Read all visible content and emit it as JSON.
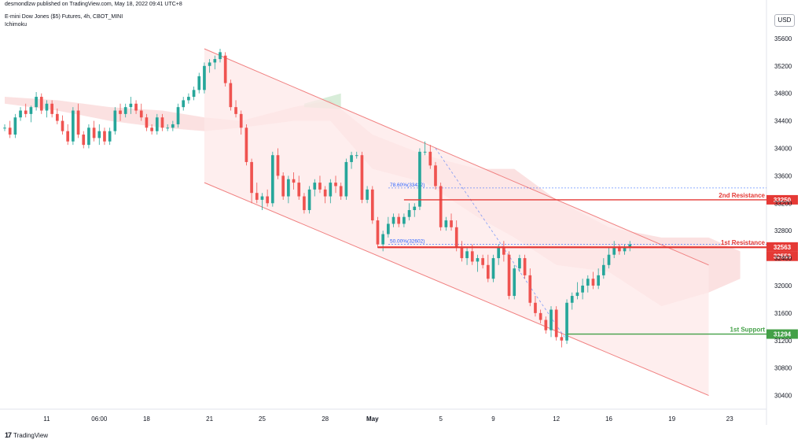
{
  "header": {
    "published": "desmondlzw published on TradingView.com, May 18, 2022 09:41 UTC+8",
    "instrument": "E-mini Dow Jones ($5) Futures, 4h, CBOT_MINI",
    "indicator": "Ichimoku"
  },
  "currency_label": "USD",
  "footer": {
    "logo": "17",
    "brand": "TradingView"
  },
  "colors": {
    "bull": "#26a69a",
    "bear": "#ef5350",
    "channel_line": "#f08080",
    "channel_fill": "#fde8e8",
    "cloud_red": "#f8c8c8",
    "cloud_green": "#c8e6c9",
    "resistance": "#e53935",
    "support": "#43a047",
    "fib": "#2962ff"
  },
  "chart_data": {
    "type": "candlestick",
    "title": "E-mini Dow Jones ($5) Futures, 4h, CBOT_MINI",
    "ylim": [
      30200,
      36000
    ],
    "y_ticks": [
      30400,
      30800,
      31200,
      31600,
      32000,
      32400,
      32800,
      33200,
      33600,
      34000,
      34400,
      34800,
      35200,
      35600
    ],
    "x_ticks": [
      {
        "label": "11",
        "i": 8
      },
      {
        "label": "06:00",
        "i": 18
      },
      {
        "label": "18",
        "i": 27
      },
      {
        "label": "21",
        "i": 39
      },
      {
        "label": "25",
        "i": 49
      },
      {
        "label": "28",
        "i": 61
      },
      {
        "label": "May",
        "i": 70
      },
      {
        "label": "5",
        "i": 83
      },
      {
        "label": "9",
        "i": 93
      },
      {
        "label": "12",
        "i": 105
      },
      {
        "label": "16",
        "i": 115
      },
      {
        "label": "19",
        "i": 127
      },
      {
        "label": "23",
        "i": 138
      }
    ],
    "x_index_range": [
      0,
      145
    ],
    "candles": [
      [
        34300,
        34350,
        34250,
        34300
      ],
      [
        34300,
        34400,
        34150,
        34200
      ],
      [
        34200,
        34500,
        34150,
        34450
      ],
      [
        34450,
        34600,
        34400,
        34550
      ],
      [
        34550,
        34650,
        34450,
        34500
      ],
      [
        34500,
        34620,
        34380,
        34600
      ],
      [
        34600,
        34820,
        34550,
        34750
      ],
      [
        34750,
        34800,
        34500,
        34550
      ],
      [
        34550,
        34700,
        34450,
        34650
      ],
      [
        34650,
        34700,
        34450,
        34500
      ],
      [
        34500,
        34580,
        34350,
        34400
      ],
      [
        34400,
        34480,
        34200,
        34250
      ],
      [
        34250,
        34350,
        34050,
        34100
      ],
      [
        34100,
        34600,
        34050,
        34550
      ],
      [
        34550,
        34650,
        34150,
        34200
      ],
      [
        34200,
        34250,
        34000,
        34050
      ],
      [
        34050,
        34350,
        34000,
        34300
      ],
      [
        34300,
        34400,
        34100,
        34150
      ],
      [
        34150,
        34350,
        34050,
        34250
      ],
      [
        34250,
        34300,
        34050,
        34100
      ],
      [
        34100,
        34300,
        34050,
        34250
      ],
      [
        34250,
        34600,
        34200,
        34550
      ],
      [
        34550,
        34650,
        34400,
        34500
      ],
      [
        34500,
        34650,
        34450,
        34600
      ],
      [
        34600,
        34750,
        34500,
        34650
      ],
      [
        34650,
        34700,
        34500,
        34550
      ],
      [
        34550,
        34650,
        34400,
        34450
      ],
      [
        34450,
        34500,
        34250,
        34300
      ],
      [
        34300,
        34350,
        34200,
        34250
      ],
      [
        34250,
        34500,
        34200,
        34450
      ],
      [
        34450,
        34500,
        34250,
        34300
      ],
      [
        34300,
        34350,
        34250,
        34300
      ],
      [
        34300,
        34400,
        34250,
        34350
      ],
      [
        34350,
        34650,
        34300,
        34600
      ],
      [
        34600,
        34750,
        34550,
        34700
      ],
      [
        34700,
        34800,
        34650,
        34750
      ],
      [
        34750,
        34900,
        34700,
        34850
      ],
      [
        34850,
        35100,
        34800,
        35050
      ],
      [
        34850,
        35250,
        34800,
        35200
      ],
      [
        35200,
        35300,
        35100,
        35250
      ],
      [
        35250,
        35350,
        35150,
        35300
      ],
      [
        35300,
        35450,
        35250,
        35400
      ],
      [
        35350,
        35400,
        34900,
        34950
      ],
      [
        34950,
        35000,
        34550,
        34600
      ],
      [
        34600,
        34700,
        34450,
        34500
      ],
      [
        34500,
        34550,
        34200,
        34300
      ],
      [
        34300,
        34350,
        33750,
        33800
      ],
      [
        33800,
        33850,
        33200,
        33350
      ],
      [
        33350,
        33500,
        33200,
        33250
      ],
      [
        33250,
        33350,
        33100,
        33300
      ],
      [
        33300,
        33400,
        33150,
        33200
      ],
      [
        33200,
        33950,
        33150,
        33900
      ],
      [
        33900,
        34000,
        33550,
        33600
      ],
      [
        33600,
        33650,
        33250,
        33300
      ],
      [
        33300,
        33600,
        33200,
        33550
      ],
      [
        33550,
        33650,
        33400,
        33500
      ],
      [
        33500,
        33600,
        33250,
        33300
      ],
      [
        33300,
        33350,
        33050,
        33100
      ],
      [
        33100,
        33450,
        33050,
        33400
      ],
      [
        33400,
        33550,
        33300,
        33500
      ],
      [
        33500,
        33600,
        33350,
        33400
      ],
      [
        33400,
        33450,
        33200,
        33300
      ],
      [
        33300,
        33550,
        33200,
        33500
      ],
      [
        33500,
        33600,
        33350,
        33450
      ],
      [
        33450,
        33500,
        33250,
        33300
      ],
      [
        33300,
        33850,
        33250,
        33800
      ],
      [
        33800,
        33950,
        33700,
        33900
      ],
      [
        33900,
        33950,
        33850,
        33900
      ],
      [
        33900,
        33950,
        33200,
        33250
      ],
      [
        33250,
        33450,
        33200,
        33400
      ],
      [
        33400,
        33450,
        32900,
        32950
      ],
      [
        32950,
        33000,
        32550,
        32600
      ],
      [
        32600,
        32800,
        32500,
        32750
      ],
      [
        32750,
        33000,
        32700,
        32900
      ],
      [
        32900,
        33050,
        32850,
        33000
      ],
      [
        33000,
        33050,
        32850,
        32900
      ],
      [
        32900,
        33050,
        32850,
        33000
      ],
      [
        33000,
        33200,
        32950,
        33100
      ],
      [
        33100,
        33200,
        33000,
        33150
      ],
      [
        33150,
        34000,
        33100,
        33950
      ],
      [
        33950,
        34100,
        33900,
        33950
      ],
      [
        33950,
        34050,
        33700,
        33750
      ],
      [
        33750,
        33800,
        33400,
        33450
      ],
      [
        33450,
        33500,
        32800,
        32850
      ],
      [
        32850,
        33000,
        32800,
        32950
      ],
      [
        32950,
        33050,
        32800,
        32850
      ],
      [
        32850,
        32950,
        32500,
        32550
      ],
      [
        32550,
        32650,
        32350,
        32400
      ],
      [
        32400,
        32550,
        32300,
        32500
      ],
      [
        32500,
        32600,
        32300,
        32350
      ],
      [
        32350,
        32450,
        32200,
        32400
      ],
      [
        32400,
        32450,
        32250,
        32300
      ],
      [
        32300,
        32450,
        32050,
        32100
      ],
      [
        32100,
        32450,
        32050,
        32400
      ],
      [
        32400,
        32600,
        32300,
        32550
      ],
      [
        32550,
        32650,
        32350,
        32450
      ],
      [
        32450,
        32500,
        31800,
        31850
      ],
      [
        31850,
        32300,
        31800,
        32250
      ],
      [
        32250,
        32450,
        32200,
        32400
      ],
      [
        32400,
        32450,
        32100,
        32150
      ],
      [
        32150,
        32250,
        31700,
        31750
      ],
      [
        31750,
        31850,
        31550,
        31600
      ],
      [
        31600,
        31650,
        31450,
        31500
      ],
      [
        31500,
        31550,
        31300,
        31350
      ],
      [
        31350,
        31700,
        31250,
        31650
      ],
      [
        31650,
        31700,
        31200,
        31250
      ],
      [
        31250,
        31300,
        31100,
        31200
      ],
      [
        31200,
        31800,
        31150,
        31750
      ],
      [
        31750,
        31900,
        31650,
        31850
      ],
      [
        31850,
        32050,
        31800,
        31900
      ],
      [
        31900,
        32100,
        31800,
        32000
      ],
      [
        32000,
        32150,
        31900,
        32100
      ],
      [
        32100,
        32200,
        31950,
        32000
      ],
      [
        32000,
        32250,
        31950,
        32150
      ],
      [
        32150,
        32400,
        32100,
        32300
      ],
      [
        32300,
        32550,
        32250,
        32450
      ],
      [
        32450,
        32650,
        32400,
        32550
      ],
      [
        32550,
        32600,
        32450,
        32500
      ],
      [
        32500,
        32600,
        32450,
        32550
      ],
      [
        32550,
        32650,
        32500,
        32600
      ]
    ],
    "channel": {
      "upper": [
        [
          38,
          35450
        ],
        [
          134,
          32300
        ]
      ],
      "lower": [
        [
          38,
          33500
        ],
        [
          134,
          30400
        ]
      ],
      "fill_right": [
        [
          134,
          32300
        ],
        [
          134,
          30400
        ]
      ]
    },
    "levels": [
      {
        "name": "2nd Resistance",
        "value": 33250,
        "price_label": "33250",
        "color": "#e53935",
        "from": 76
      },
      {
        "name": "1st Resistance",
        "value": 32563,
        "price_label": "32563",
        "color": "#e53935",
        "from": 71
      },
      {
        "name": "",
        "value": 32553,
        "price_label": "32553",
        "color": "#e53935",
        "from": 71
      },
      {
        "name": "1st Support",
        "value": 31294,
        "price_label": "31294",
        "color": "#43a047",
        "from": 107
      }
    ],
    "fib": [
      {
        "label": "78.60%(33422)",
        "value": 33422
      },
      {
        "label": "50.00%(32602)",
        "value": 32602
      }
    ],
    "fib_range": [
      [
        82,
        34000
      ],
      [
        107,
        31200
      ]
    ],
    "cloud_top": [
      [
        0,
        34750
      ],
      [
        10,
        34700
      ],
      [
        20,
        34600
      ],
      [
        30,
        34550
      ],
      [
        38,
        34450
      ],
      [
        45,
        34400
      ],
      [
        55,
        34600
      ],
      [
        62,
        34700
      ],
      [
        70,
        34200
      ],
      [
        80,
        33900
      ],
      [
        90,
        33700
      ],
      [
        97,
        33700
      ],
      [
        105,
        33250
      ],
      [
        115,
        32850
      ],
      [
        125,
        32700
      ],
      [
        134,
        32700
      ],
      [
        140,
        32500
      ]
    ],
    "cloud_bottom": [
      [
        0,
        34650
      ],
      [
        10,
        34550
      ],
      [
        20,
        34400
      ],
      [
        30,
        34300
      ],
      [
        38,
        34250
      ],
      [
        45,
        34300
      ],
      [
        55,
        34400
      ],
      [
        62,
        34400
      ],
      [
        70,
        33700
      ],
      [
        80,
        33500
      ],
      [
        90,
        33000
      ],
      [
        97,
        32700
      ],
      [
        105,
        32300
      ],
      [
        115,
        32200
      ],
      [
        125,
        31700
      ],
      [
        134,
        31900
      ],
      [
        140,
        32100
      ]
    ],
    "cloud_green_span": [
      [
        57,
        34650
      ],
      [
        64,
        34800
      ]
    ]
  }
}
